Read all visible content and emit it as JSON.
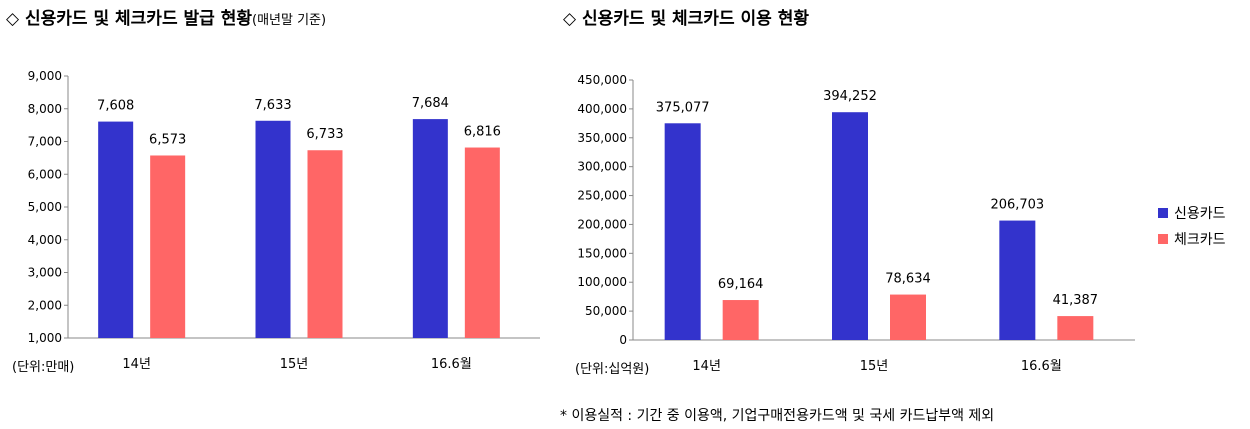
{
  "left": {
    "title_main": "◇ 신용카드 및 체크카드 발급 현황",
    "title_sub": "(매년말 기준)"
  },
  "right": {
    "title_main": "◇ 신용카드 및 체크카드 이용 현황"
  },
  "legend": [
    {
      "label": "신용카드",
      "color": "#3333cc"
    },
    {
      "label": "체크카드",
      "color": "#ff6666"
    }
  ],
  "note": "* 이용실적 : 기간 중 이용액, 기업구매전용카드액 및 국세 카드납부액 제외",
  "chart_data": [
    {
      "type": "bar",
      "unit_label": "(단위:만매)",
      "categories": [
        "14년",
        "15년",
        "16.6월"
      ],
      "ylim": [
        1000,
        9000
      ],
      "yticks": [
        "1,000",
        "2,000",
        "3,000",
        "4,000",
        "5,000",
        "6,000",
        "7,000",
        "8,000",
        "9,000"
      ],
      "series": [
        {
          "name": "신용카드",
          "color": "#3333cc",
          "values": [
            7608,
            7633,
            7684
          ],
          "labels": [
            "7,608",
            "7,633",
            "7,684"
          ]
        },
        {
          "name": "체크카드",
          "color": "#ff6666",
          "values": [
            6573,
            6733,
            6816
          ],
          "labels": [
            "6,573",
            "6,733",
            "6,816"
          ]
        }
      ]
    },
    {
      "type": "bar",
      "unit_label": "(단위:십억원)",
      "categories": [
        "14년",
        "15년",
        "16.6월"
      ],
      "ylim": [
        0,
        450000
      ],
      "yticks": [
        "0",
        "50,000",
        "100,000",
        "150,000",
        "200,000",
        "250,000",
        "300,000",
        "350,000",
        "400,000",
        "450,000"
      ],
      "series": [
        {
          "name": "신용카드",
          "color": "#3333cc",
          "values": [
            375077,
            394252,
            206703
          ],
          "labels": [
            "375,077",
            "394,252",
            "206,703"
          ]
        },
        {
          "name": "체크카드",
          "color": "#ff6666",
          "values": [
            69164,
            78634,
            41387
          ],
          "labels": [
            "69,164",
            "78,634",
            "41,387"
          ]
        }
      ]
    }
  ]
}
